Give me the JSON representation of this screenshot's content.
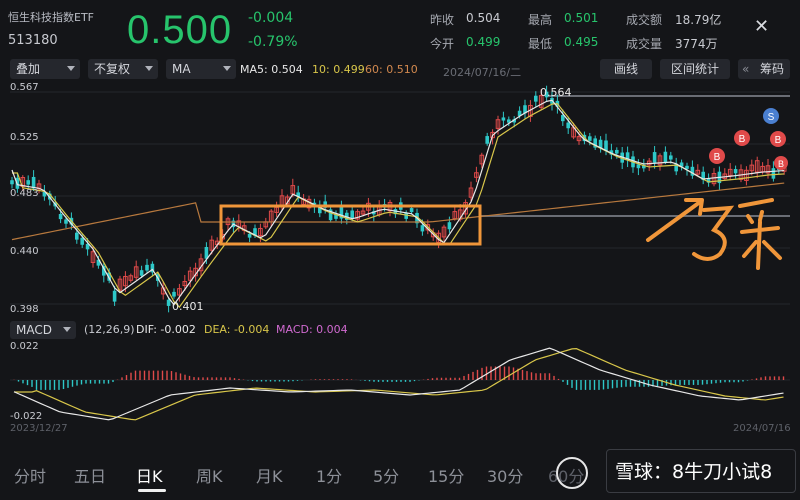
{
  "header": {
    "name": "恒生科技指数ETF",
    "code": "513180",
    "price": "0.500",
    "change": "-0.004",
    "change_pct": "-0.79%",
    "stats": {
      "prev_close_label": "昨收",
      "prev_close": "0.504",
      "open_label": "今开",
      "open": "0.499",
      "high_label": "最高",
      "high": "0.501",
      "low_label": "最低",
      "low": "0.495",
      "turnover_label": "成交额",
      "turnover": "18.79亿",
      "volume_label": "成交量",
      "volume": "3774万"
    }
  },
  "toolbar": {
    "overlay": "叠加",
    "adjust": "不复权",
    "indicator": "MA",
    "ma5": "MA5: 0.504",
    "ma10": "10: 0.499",
    "ma60": "60: 0.510",
    "date": "2024/07/16/二",
    "draw_line": "画线",
    "interval_stats": "区间统计",
    "chips": "筹码"
  },
  "chart": {
    "y_labels": [
      "0.567",
      "0.525",
      "0.483",
      "0.440",
      "0.398"
    ],
    "high_marker": "0.564",
    "low_marker": "0.401",
    "badges": [
      "B",
      "B",
      "B",
      "B",
      "S"
    ],
    "annotation_text": "了采"
  },
  "macd": {
    "indicator": "MACD",
    "params": "(12,26,9)",
    "dif": "DIF: -0.002",
    "dea": "DEA: -0.004",
    "macd": "MACD: 0.004",
    "y_top": "0.022",
    "y_bottom": "-0.022",
    "date_start": "2023/12/27",
    "date_end": "2024/07/16"
  },
  "tabs": [
    "分时",
    "五日",
    "日K",
    "周K",
    "月K",
    "1分",
    "5分",
    "15分",
    "30分",
    "60分"
  ],
  "watermark": "雪球：8牛刀小试8",
  "colors": {
    "up": "#e04a4a",
    "down": "#2ec8c8",
    "price_green": "#27c46c",
    "orange": "#f0963a"
  }
}
